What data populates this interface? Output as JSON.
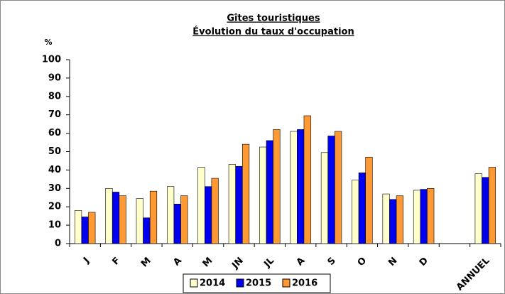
{
  "chart_data": {
    "type": "bar",
    "title": "Gîtes touristiques",
    "subtitle": "Évolution du taux d'occupation",
    "y_label": "%",
    "categories": [
      "J",
      "F",
      "M",
      "A",
      "M",
      "JN",
      "JL",
      "A",
      "S",
      "O",
      "N",
      "D",
      null,
      "ANNUEL"
    ],
    "series": [
      {
        "name": "2014",
        "color": "#ffffcc",
        "values": [
          18,
          30,
          24.5,
          31,
          41.5,
          43,
          52.5,
          61,
          49.5,
          34.5,
          27,
          29,
          null,
          38
        ]
      },
      {
        "name": "2015",
        "color": "#0000ee",
        "values": [
          14.5,
          28,
          14,
          21.5,
          31,
          42,
          56,
          62,
          58.5,
          38.5,
          24,
          29.5,
          null,
          36
        ]
      },
      {
        "name": "2016",
        "color": "#ff9933",
        "values": [
          17,
          26,
          28.5,
          26,
          35.5,
          54,
          62,
          69.5,
          61,
          47,
          26,
          30,
          null,
          41.5
        ]
      }
    ],
    "ylim": [
      0,
      100
    ],
    "yticks": [
      0,
      10,
      20,
      30,
      40,
      50,
      60,
      70,
      80,
      90,
      100
    ],
    "grid": false,
    "legend": "bottom"
  }
}
